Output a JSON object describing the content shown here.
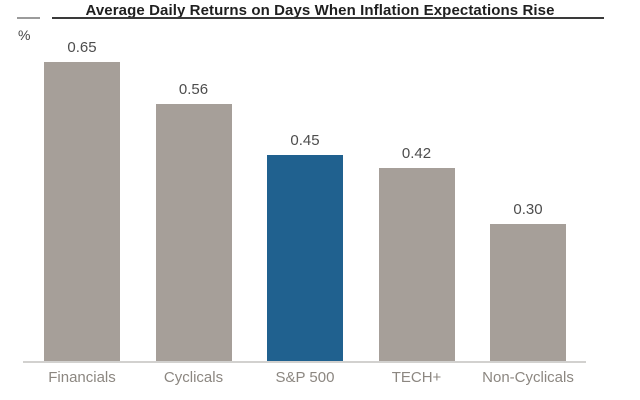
{
  "chart_data": {
    "type": "bar",
    "title": "Average Daily Returns on Days When Inflation Expectations Rise",
    "ylabel": "%",
    "categories": [
      "Financials",
      "Cyclicals",
      "S&P 500",
      "TECH+",
      "Non-Cyclicals"
    ],
    "values": [
      0.65,
      0.56,
      0.45,
      0.42,
      0.3
    ],
    "value_labels": [
      "0.65",
      "0.56",
      "0.45",
      "0.42",
      "0.30"
    ],
    "bar_colors": [
      "#a69f99",
      "#a69f99",
      "#20618f",
      "#a69f99",
      "#a69f99"
    ],
    "colors": {
      "default_bar": "#a69f99",
      "highlight_bar": "#20618f",
      "title_text": "#1f1f1f",
      "value_text": "#4d4d4d",
      "category_text": "#8c8781",
      "baseline": "#d2d1cf",
      "title_rule": "#3a3a3a"
    },
    "highlight_index": 2,
    "ylim": [
      0,
      0.7
    ],
    "grid": false,
    "legend": false
  }
}
